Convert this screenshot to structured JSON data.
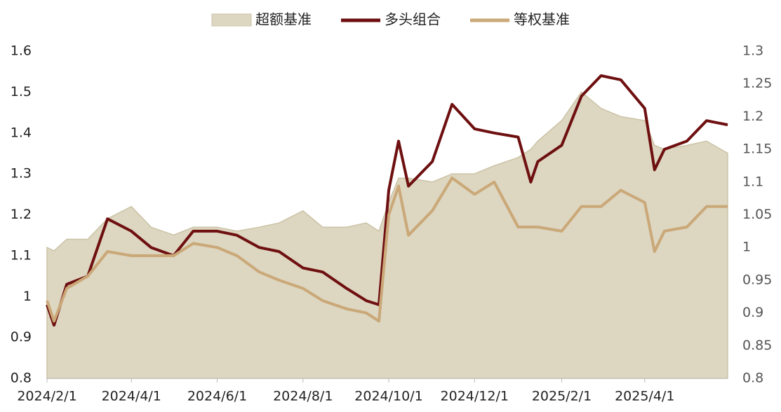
{
  "chart_data": {
    "type": "line",
    "x": [
      "2024/2/1",
      "2024/2/6",
      "2024/2/15",
      "2024/3/1",
      "2024/3/15",
      "2024/4/1",
      "2024/4/15",
      "2024/5/1",
      "2024/5/15",
      "2024/6/1",
      "2024/6/15",
      "2024/7/1",
      "2024/7/15",
      "2024/8/1",
      "2024/8/15",
      "2024/9/1",
      "2024/9/15",
      "2024/9/24",
      "2024/10/1",
      "2024/10/8",
      "2024/10/15",
      "2024/11/1",
      "2024/11/15",
      "2024/12/1",
      "2024/12/15",
      "2025/1/1",
      "2025/1/10",
      "2025/1/15",
      "2025/2/1",
      "2025/2/15",
      "2025/3/1",
      "2025/3/15",
      "2025/4/1",
      "2025/4/8",
      "2025/4/15",
      "2025/5/1",
      "2025/5/15",
      "2025/5/30"
    ],
    "series": [
      {
        "name": "超额基准",
        "kind": "area",
        "axis": "y2",
        "color": "#ddd6c1",
        "values": [
          1.0,
          0.995,
          1.0125,
          1.0125,
          1.044,
          1.0625,
          1.031,
          1.019,
          1.031,
          1.031,
          1.025,
          1.031,
          1.0375,
          1.056,
          1.031,
          1.031,
          1.0375,
          1.025,
          1.069,
          1.106,
          1.106,
          1.1,
          1.1125,
          1.1125,
          1.125,
          1.1375,
          1.15,
          1.1625,
          1.194,
          1.2375,
          1.2125,
          1.2,
          1.194,
          1.156,
          1.15,
          1.156,
          1.1625,
          1.144
        ]
      },
      {
        "name": "多头组合",
        "kind": "line",
        "color": "#6e0f10",
        "values": [
          0.98,
          0.93,
          1.03,
          1.05,
          1.19,
          1.16,
          1.12,
          1.1,
          1.16,
          1.16,
          1.15,
          1.12,
          1.11,
          1.07,
          1.06,
          1.02,
          0.99,
          0.98,
          1.26,
          1.38,
          1.27,
          1.33,
          1.47,
          1.41,
          1.4,
          1.39,
          1.28,
          1.33,
          1.37,
          1.49,
          1.54,
          1.53,
          1.46,
          1.31,
          1.36,
          1.38,
          1.43,
          1.42
        ]
      },
      {
        "name": "等权基准",
        "kind": "line",
        "color": "#caa878",
        "values": [
          0.99,
          0.94,
          1.02,
          1.05,
          1.11,
          1.1,
          1.1,
          1.1,
          1.13,
          1.12,
          1.1,
          1.06,
          1.04,
          1.02,
          0.99,
          0.97,
          0.96,
          0.94,
          1.2,
          1.27,
          1.15,
          1.21,
          1.29,
          1.25,
          1.28,
          1.17,
          1.17,
          1.17,
          1.16,
          1.22,
          1.22,
          1.26,
          1.23,
          1.11,
          1.16,
          1.17,
          1.22,
          1.22
        ]
      }
    ],
    "xlim": [
      "2024/2/1",
      "2025/5/30"
    ],
    "xticks": [
      "2024/2/1",
      "2024/4/1",
      "2024/6/1",
      "2024/8/1",
      "2024/10/1",
      "2024/12/1",
      "2025/2/1",
      "2025/4/1"
    ],
    "ylim": [
      0.8,
      1.6
    ],
    "yticks": [
      0.8,
      0.9,
      1,
      1.1,
      1.2,
      1.3,
      1.4,
      1.5,
      1.6
    ],
    "y2lim": [
      0.8,
      1.3
    ],
    "y2ticks": [
      0.8,
      0.85,
      0.9,
      0.95,
      1,
      1.05,
      1.1,
      1.15,
      1.2,
      1.25,
      1.3
    ],
    "legend": "top"
  }
}
